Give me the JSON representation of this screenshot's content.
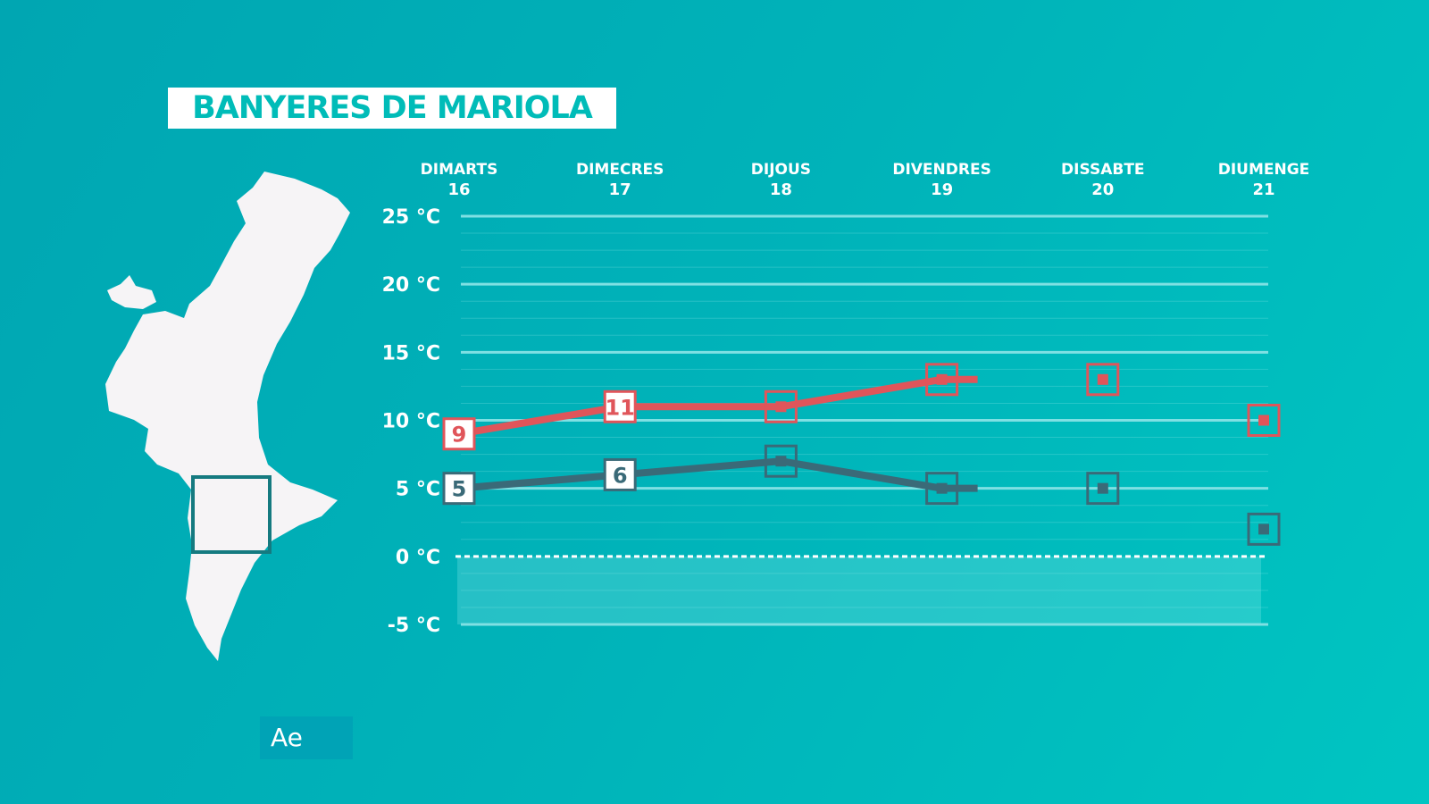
{
  "title": "BANYERES DE MARIOLA",
  "badge": "Ae",
  "colors": {
    "max": "#e0555a",
    "min": "#3a6a78",
    "grid": "#7fe0e3",
    "background": "#00b3b9"
  },
  "chart_data": {
    "type": "line",
    "categories": [
      {
        "day": "DIMARTS",
        "date": "16"
      },
      {
        "day": "DIMECRES",
        "date": "17"
      },
      {
        "day": "DIJOUS",
        "date": "18"
      },
      {
        "day": "DIVENDRES",
        "date": "19"
      },
      {
        "day": "DISSABTE",
        "date": "20"
      },
      {
        "day": "DIUMENGE",
        "date": "21"
      }
    ],
    "yticks": [
      "25 °C",
      "20 °C",
      "15 °C",
      "10 °C",
      "5 °C",
      "0 °C",
      "-5 °C"
    ],
    "ytick_values": [
      25,
      20,
      15,
      10,
      5,
      0,
      -5
    ],
    "ylim": [
      -5,
      25
    ],
    "grid": true,
    "series": [
      {
        "key": "max",
        "values": [
          9,
          11,
          11,
          13,
          13,
          10
        ],
        "line_until_index": 3,
        "labels": [
          "9",
          "11"
        ]
      },
      {
        "key": "min",
        "values": [
          5,
          6,
          7,
          5,
          5,
          2
        ],
        "line_until_index": 3,
        "labels": [
          "5",
          "6"
        ]
      }
    ]
  }
}
